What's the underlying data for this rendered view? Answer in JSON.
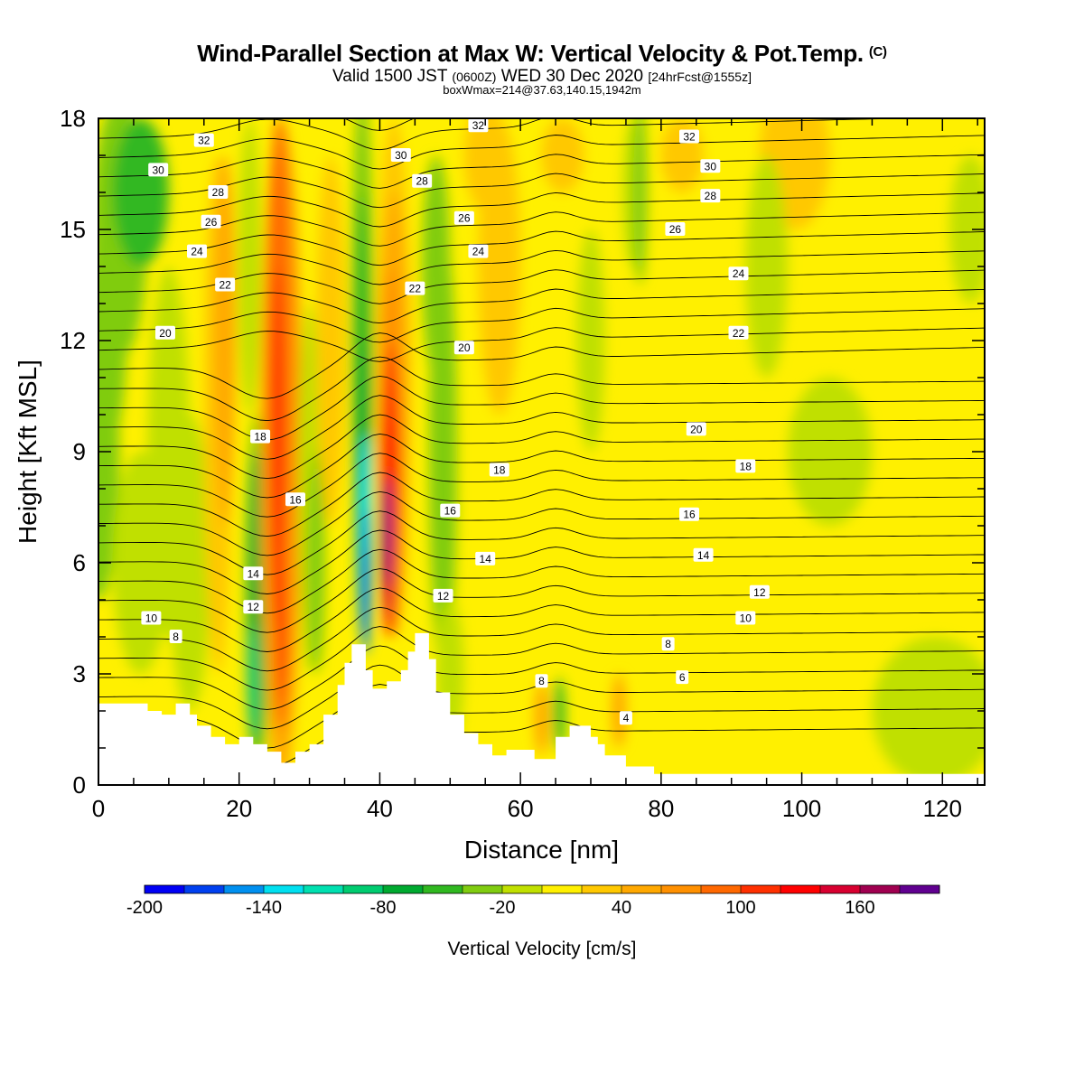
{
  "header": {
    "title": "Wind-Parallel Section at Max W: Vertical Velocity & Pot.Temp.",
    "copyright": "(C)",
    "valid_a": "Valid 1500 JST",
    "valid_z": "(0600Z)",
    "valid_b": "WED 30 Dec 2020",
    "valid_fcst": "[24hrFcst@1555z]",
    "boxwmax": "boxWmax=214@37.63,140.15,1942m"
  },
  "colorbar": {
    "label": "Vertical Velocity [cm/s]",
    "tick_labels": [
      "-200",
      "-140",
      "-80",
      "-20",
      "40",
      "100",
      "160"
    ],
    "colors": [
      "#0000f5",
      "#0040f0",
      "#0090f0",
      "#00e0f0",
      "#00e0b0",
      "#00cc70",
      "#00aa30",
      "#30b820",
      "#80cc10",
      "#c0e000",
      "#fff000",
      "#ffc800",
      "#ffa800",
      "#ff9000",
      "#ff6800",
      "#ff3000",
      "#ff0000",
      "#d80030",
      "#a00050",
      "#600090"
    ]
  },
  "chart_data": {
    "type": "heatmap",
    "title": "Wind-Parallel Section at Max W: Vertical Velocity & Pot.Temp.",
    "xlabel": "Distance [nm]",
    "ylabel": "Height [Kft MSL]",
    "xlim": [
      0,
      126
    ],
    "ylim": [
      0,
      18
    ],
    "xticks": [
      0,
      20,
      40,
      60,
      80,
      100,
      120
    ],
    "yticks": [
      0,
      3,
      6,
      9,
      12,
      15,
      18
    ],
    "color_variable": "Vertical Velocity [cm/s]",
    "color_scale": [
      -200,
      200
    ],
    "contour_variable": "Potential temperature (labelled contours)",
    "contour_labels": [
      {
        "text": "32",
        "x": 15,
        "y": 17.4
      },
      {
        "text": "30",
        "x": 8.5,
        "y": 16.6
      },
      {
        "text": "28",
        "x": 17,
        "y": 16.0
      },
      {
        "text": "26",
        "x": 16,
        "y": 15.2
      },
      {
        "text": "24",
        "x": 14,
        "y": 14.4
      },
      {
        "text": "22",
        "x": 18,
        "y": 13.5
      },
      {
        "text": "20",
        "x": 9.5,
        "y": 12.2
      },
      {
        "text": "18",
        "x": 23,
        "y": 9.4
      },
      {
        "text": "16",
        "x": 28,
        "y": 7.7
      },
      {
        "text": "14",
        "x": 22,
        "y": 5.7
      },
      {
        "text": "12",
        "x": 22,
        "y": 4.8
      },
      {
        "text": "10",
        "x": 7.5,
        "y": 4.5
      },
      {
        "text": "8",
        "x": 11,
        "y": 4.0
      },
      {
        "text": "32",
        "x": 54,
        "y": 17.8
      },
      {
        "text": "30",
        "x": 43,
        "y": 17.0
      },
      {
        "text": "28",
        "x": 46,
        "y": 16.3
      },
      {
        "text": "26",
        "x": 52,
        "y": 15.3
      },
      {
        "text": "24",
        "x": 54,
        "y": 14.4
      },
      {
        "text": "22",
        "x": 45,
        "y": 13.4
      },
      {
        "text": "20",
        "x": 52,
        "y": 11.8
      },
      {
        "text": "18",
        "x": 57,
        "y": 8.5
      },
      {
        "text": "16",
        "x": 50,
        "y": 7.4
      },
      {
        "text": "14",
        "x": 55,
        "y": 6.1
      },
      {
        "text": "12",
        "x": 49,
        "y": 5.1
      },
      {
        "text": "8",
        "x": 63,
        "y": 2.8
      },
      {
        "text": "32",
        "x": 84,
        "y": 17.5
      },
      {
        "text": "30",
        "x": 87,
        "y": 16.7
      },
      {
        "text": "28",
        "x": 87,
        "y": 15.9
      },
      {
        "text": "26",
        "x": 82,
        "y": 15.0
      },
      {
        "text": "24",
        "x": 91,
        "y": 13.8
      },
      {
        "text": "22",
        "x": 91,
        "y": 12.2
      },
      {
        "text": "20",
        "x": 85,
        "y": 9.6
      },
      {
        "text": "18",
        "x": 92,
        "y": 8.6
      },
      {
        "text": "16",
        "x": 84,
        "y": 7.3
      },
      {
        "text": "14",
        "x": 86,
        "y": 6.2
      },
      {
        "text": "12",
        "x": 94,
        "y": 5.2
      },
      {
        "text": "10",
        "x": 92,
        "y": 4.5
      },
      {
        "text": "8",
        "x": 81,
        "y": 3.8
      },
      {
        "text": "6",
        "x": 83,
        "y": 2.9
      },
      {
        "text": "4",
        "x": 75,
        "y": 1.8
      }
    ],
    "features": [
      {
        "name": "updraft core",
        "x": 41,
        "y_range": [
          4,
          10
        ],
        "max": 214
      },
      {
        "name": "downdraft core",
        "x": 38,
        "y_range": [
          3.5,
          8
        ],
        "min": -180
      },
      {
        "name": "updraft band",
        "x": 25,
        "y_range": [
          2,
          18
        ],
        "max": 110
      },
      {
        "name": "downdraft band",
        "x": 22.5,
        "y_range": [
          1.5,
          9
        ],
        "min": -90
      }
    ],
    "terrain_profile": [
      [
        0,
        2.2
      ],
      [
        7,
        2.2
      ],
      [
        7,
        2.0
      ],
      [
        9,
        2.0
      ],
      [
        9,
        1.9
      ],
      [
        11,
        1.9
      ],
      [
        11,
        2.2
      ],
      [
        13,
        2.2
      ],
      [
        13,
        1.9
      ],
      [
        14,
        1.9
      ],
      [
        14,
        1.6
      ],
      [
        16,
        1.6
      ],
      [
        16,
        1.3
      ],
      [
        18,
        1.3
      ],
      [
        18,
        1.1
      ],
      [
        20,
        1.1
      ],
      [
        20,
        1.3
      ],
      [
        22,
        1.3
      ],
      [
        22,
        1.1
      ],
      [
        24,
        1.1
      ],
      [
        24,
        0.9
      ],
      [
        26,
        0.9
      ],
      [
        26,
        0.6
      ],
      [
        28,
        0.6
      ],
      [
        28,
        0.9
      ],
      [
        30,
        0.9
      ],
      [
        30,
        1.1
      ],
      [
        32,
        1.1
      ],
      [
        32,
        1.9
      ],
      [
        34,
        1.9
      ],
      [
        34,
        2.7
      ],
      [
        35,
        2.7
      ],
      [
        35,
        3.3
      ],
      [
        36,
        3.3
      ],
      [
        36,
        3.8
      ],
      [
        38,
        3.8
      ],
      [
        38,
        3.1
      ],
      [
        39,
        3.1
      ],
      [
        39,
        2.6
      ],
      [
        41,
        2.6
      ],
      [
        41,
        2.8
      ],
      [
        43,
        2.8
      ],
      [
        43,
        3.1
      ],
      [
        44,
        3.1
      ],
      [
        44,
        3.6
      ],
      [
        45,
        3.6
      ],
      [
        45,
        4.1
      ],
      [
        47,
        4.1
      ],
      [
        47,
        3.4
      ],
      [
        48,
        3.4
      ],
      [
        48,
        2.5
      ],
      [
        50,
        2.5
      ],
      [
        50,
        1.9
      ],
      [
        52,
        1.9
      ],
      [
        52,
        1.4
      ],
      [
        54,
        1.4
      ],
      [
        54,
        1.1
      ],
      [
        56,
        1.1
      ],
      [
        56,
        0.8
      ],
      [
        58,
        0.8
      ],
      [
        58,
        0.95
      ],
      [
        62,
        0.95
      ],
      [
        62,
        0.7
      ],
      [
        65,
        0.7
      ],
      [
        65,
        1.3
      ],
      [
        67,
        1.3
      ],
      [
        67,
        1.6
      ],
      [
        70,
        1.6
      ],
      [
        70,
        1.3
      ],
      [
        71,
        1.3
      ],
      [
        71,
        1.1
      ],
      [
        72,
        1.1
      ],
      [
        72,
        0.8
      ],
      [
        75,
        0.8
      ],
      [
        75,
        0.5
      ],
      [
        79,
        0.5
      ],
      [
        79,
        0.3
      ],
      [
        126,
        0.3
      ],
      [
        126,
        0
      ],
      [
        0,
        0
      ]
    ]
  }
}
